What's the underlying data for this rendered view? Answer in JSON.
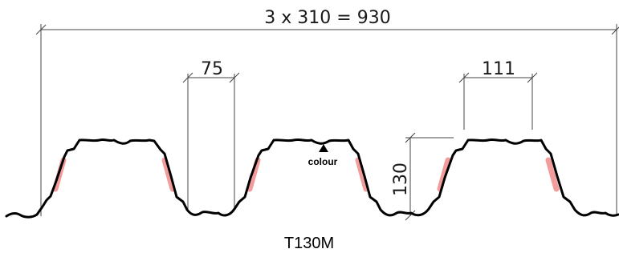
{
  "dimensions": {
    "overall_width": "3 x 310 = 930",
    "rib_top_width": "111",
    "rib_bottom_opening": "75",
    "profile_height": "130"
  },
  "labels": {
    "colour_side": "colour",
    "profile_name": "T130M"
  },
  "colors": {
    "profile_line": "#000000",
    "web_highlight": "#f28b8b",
    "dimension_line": "#444444"
  },
  "icons": {
    "colour_marker": "triangle-up-icon"
  }
}
